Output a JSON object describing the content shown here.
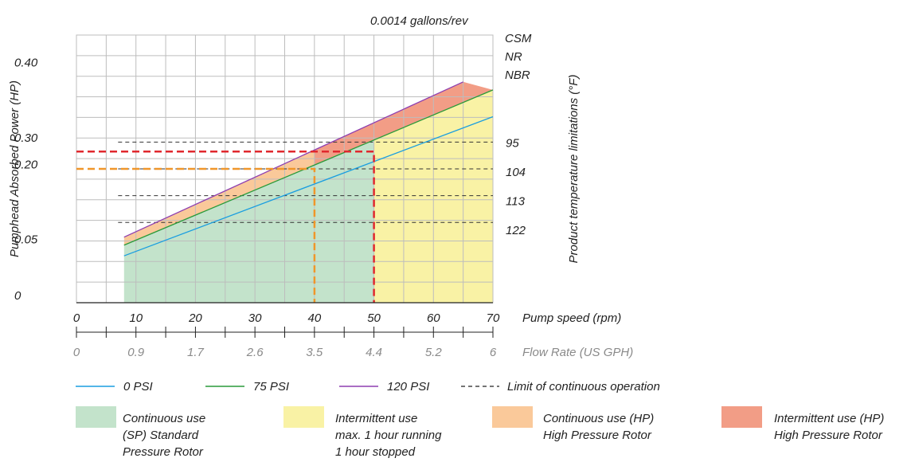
{
  "chart_data": {
    "type": "area",
    "title": "",
    "subtitle": "0.0014 gallons/rev",
    "ylabel": "Pumphead Absorbed Power (HP)",
    "right_label": "Product temperature limitations (°F)",
    "material_labels": [
      "CSM",
      "NR",
      "NBR"
    ],
    "y_tick_labels": [
      "0",
      "0.05",
      "0.20",
      "0.30",
      "0.40"
    ],
    "x_speed": {
      "label": "Pump speed (rpm)",
      "ticks": [
        "0",
        "10",
        "20",
        "30",
        "40",
        "50",
        "60",
        "70"
      ],
      "range": [
        0,
        70
      ]
    },
    "x_flow": {
      "label": "Flow Rate (US GPH)",
      "ticks": [
        "0",
        "0.9",
        "1.7",
        "2.6",
        "3.5",
        "4.4",
        "5.2",
        "6"
      ]
    },
    "temperature_limits": [
      {
        "label": "95",
        "level": 0.6
      },
      {
        "label": "104",
        "level": 0.5
      },
      {
        "label": "113",
        "level": 0.4
      },
      {
        "label": "122",
        "level": 0.3
      }
    ],
    "series": [
      {
        "name": "0 PSI",
        "color": "#1a9ee0",
        "rpm": [
          8,
          70
        ],
        "level": [
          0.175,
          0.695
        ]
      },
      {
        "name": "75 PSI",
        "color": "#2a9a3a",
        "rpm": [
          8,
          70
        ],
        "level": [
          0.215,
          0.795
        ]
      },
      {
        "name": "120 PSI",
        "color": "#8e3fb0",
        "rpm": [
          8,
          65
        ],
        "level": [
          0.245,
          0.825
        ]
      }
    ],
    "continuous_limit": {
      "name": "Limit of continuous operation",
      "style": "dashed",
      "color": "#222222"
    },
    "operating_limits": [
      {
        "rpm": 40,
        "level": 0.5,
        "color": "#f0962a"
      },
      {
        "rpm": 50,
        "level": 0.565,
        "color": "#e0282e"
      }
    ],
    "areas": [
      {
        "label_lines": [
          "Continuous use",
          "(SP) Standard",
          "Pressure Rotor"
        ],
        "color": "#c3e3cb"
      },
      {
        "label_lines": [
          "Intermittent use",
          "max. 1 hour running",
          "1 hour stopped"
        ],
        "color": "#f9f2a5"
      },
      {
        "label_lines": [
          "Continuous use (HP)",
          "High Pressure Rotor"
        ],
        "color": "#fac99a"
      },
      {
        "label_lines": [
          "Intermittent use (HP)",
          "High Pressure Rotor"
        ],
        "color": "#f29d86"
      }
    ],
    "grid": true
  }
}
